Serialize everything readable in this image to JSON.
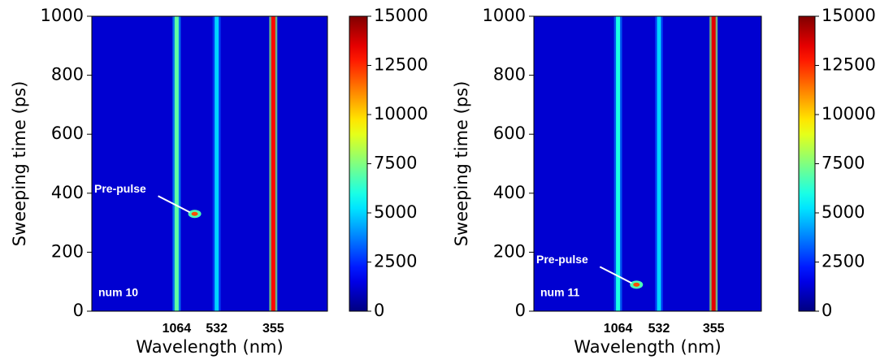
{
  "chart_data": [
    {
      "type": "heatmap",
      "xlabel": "Wavelength (nm)",
      "ylabel": "Sweeping time (ps)",
      "categories": [
        "1064",
        "532",
        "355"
      ],
      "values": [
        7000,
        5000,
        13000
      ],
      "background": 1200,
      "ylim": [
        1000,
        0
      ],
      "yticks": [
        0,
        200,
        400,
        600,
        800,
        1000
      ],
      "clim": [
        0,
        15000
      ],
      "cticks": [
        0,
        2500,
        5000,
        7500,
        10000,
        12500,
        15000
      ],
      "colormap": "jet",
      "panel_label": "num 10",
      "annotations": [
        {
          "text": "Pre-pulse",
          "y": 330
        }
      ]
    },
    {
      "type": "heatmap",
      "xlabel": "Wavelength (nm)",
      "ylabel": "Sweeping time (ps)",
      "categories": [
        "1064",
        "532",
        "355"
      ],
      "values": [
        6000,
        5000,
        13500
      ],
      "background": 1200,
      "ylim": [
        1000,
        0
      ],
      "yticks": [
        0,
        200,
        400,
        600,
        800,
        1000
      ],
      "clim": [
        0,
        15000
      ],
      "cticks": [
        0,
        2500,
        5000,
        7500,
        10000,
        12500,
        15000
      ],
      "colormap": "jet",
      "panel_label": "num 11",
      "annotations": [
        {
          "text": "Pre-pulse",
          "y": 90
        }
      ]
    }
  ]
}
